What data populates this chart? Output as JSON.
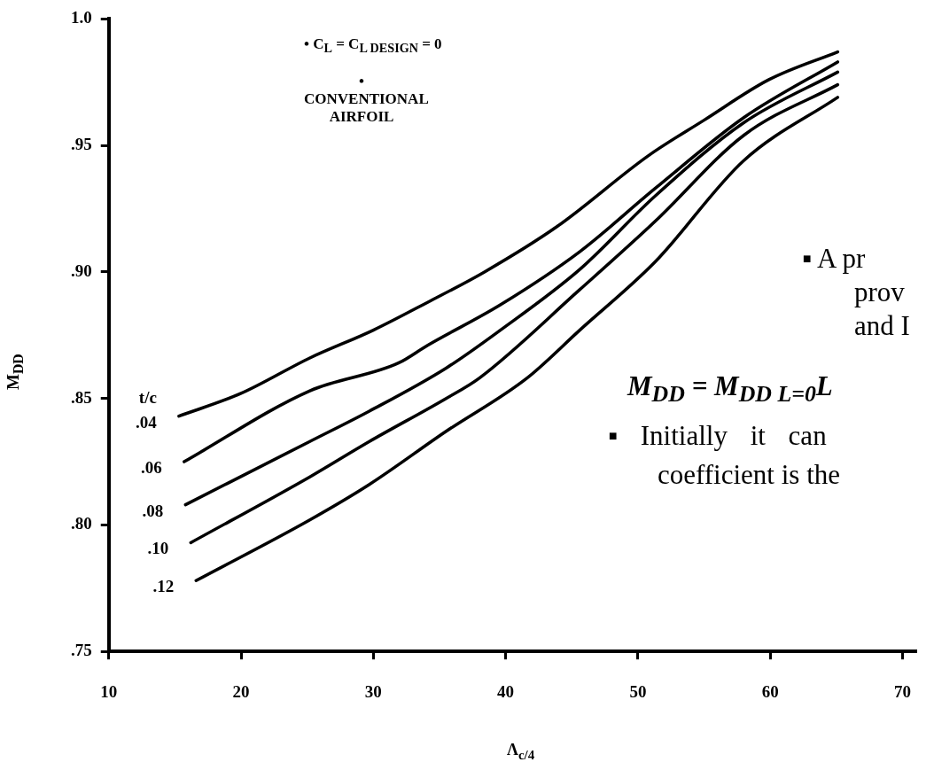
{
  "chart_data": {
    "type": "line",
    "xlabel": "Λ$_{c/4}$",
    "ylabel": "M$_{DD}$",
    "legend_title": "t/c",
    "xlim": [
      10,
      71
    ],
    "ylim": [
      0.75,
      1.0
    ],
    "xticks": [
      10,
      20,
      30,
      40,
      50,
      60,
      70
    ],
    "yticks": [
      {
        "value": 0.75,
        "label": ".75"
      },
      {
        "value": 0.8,
        "label": ".80"
      },
      {
        "value": 0.85,
        "label": ".85"
      },
      {
        "value": 0.9,
        "label": ".90"
      },
      {
        "value": 0.95,
        "label": ".95"
      },
      {
        "value": 1.0,
        "label": "1.0"
      }
    ],
    "annotations": [
      "• C$_{L}$ = C$_{L DESIGN}$ = 0",
      "• CONVENTIONAL AIRFOIL",
      "▪ A pr",
      "prov",
      "and I",
      "M$_{DD}$ = M$_{DD L=0}$L",
      "▪ Initially it can",
      "coefficient is the"
    ],
    "series": [
      {
        "name": ".04",
        "color": "#000000",
        "x": [
          15.3,
          20,
          25.2,
          30,
          34.1,
          38.4,
          43.9,
          50.8,
          55,
          59.9,
          65.1
        ],
        "values": [
          0.843,
          0.852,
          0.866,
          0.877,
          0.888,
          0.9,
          0.918,
          0.946,
          0.96,
          0.976,
          0.987
        ]
      },
      {
        "name": ".06",
        "color": "#000000",
        "x": [
          15.7,
          25.2,
          31.9,
          34.1,
          39.6,
          45.6,
          51.3,
          58,
          65.1
        ],
        "values": [
          0.825,
          0.853,
          0.864,
          0.871,
          0.887,
          0.908,
          0.933,
          0.961,
          0.983
        ]
      },
      {
        "name": ".08",
        "color": "#000000",
        "x": [
          15.8,
          25.2,
          29.7,
          35.5,
          39.6,
          45.6,
          51.3,
          58,
          65.1
        ],
        "values": [
          0.808,
          0.833,
          0.845,
          0.862,
          0.877,
          0.901,
          0.93,
          0.959,
          0.979
        ]
      },
      {
        "name": ".10",
        "color": "#000000",
        "x": [
          16.2,
          25.2,
          29.7,
          35.5,
          38,
          45.6,
          51.3,
          58,
          65.1
        ],
        "values": [
          0.793,
          0.819,
          0.833,
          0.85,
          0.858,
          0.893,
          0.92,
          0.954,
          0.974
        ]
      },
      {
        "name": ".12",
        "color": "#000000",
        "x": [
          16.6,
          25.2,
          29.7,
          35.5,
          41.6,
          45.6,
          51.3,
          58,
          65.1
        ],
        "values": [
          0.778,
          0.802,
          0.816,
          0.837,
          0.858,
          0.877,
          0.904,
          0.944,
          0.969
        ]
      }
    ]
  }
}
